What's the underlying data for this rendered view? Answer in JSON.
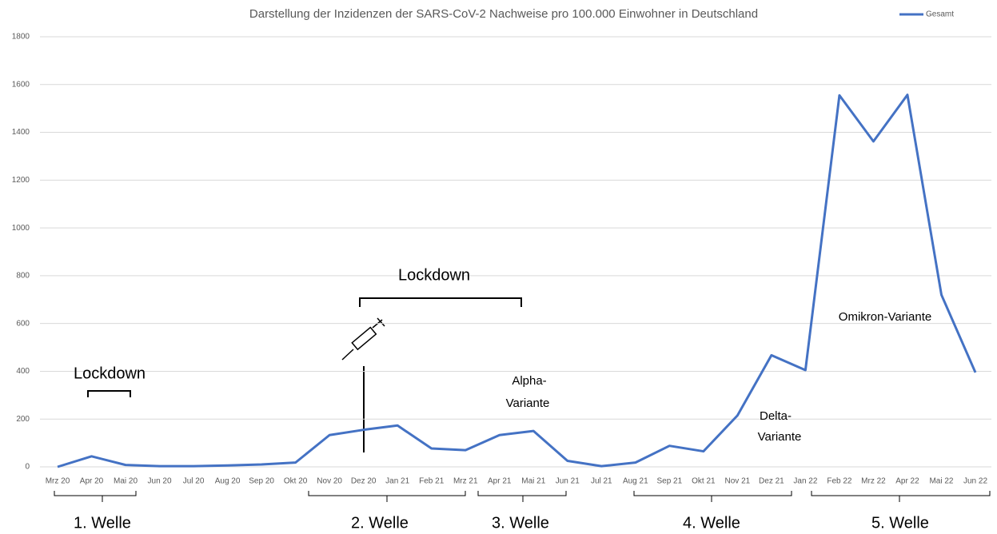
{
  "chart_data": {
    "type": "line",
    "title": "Darstellung der Inzidenzen der SARS-CoV-2 Nachweise pro 100.000 Einwohner in Deutschland",
    "categories": [
      "Mrz 20",
      "Apr 20",
      "Mai 20",
      "Jun 20",
      "Jul 20",
      "Aug 20",
      "Sep 20",
      "Okt 20",
      "Nov 20",
      "Dez 20",
      "Jan 21",
      "Feb 21",
      "Mrz 21",
      "Apr 21",
      "Mai 21",
      "Jun 21",
      "Jul 21",
      "Aug 21",
      "Sep 21",
      "Okt 21",
      "Nov 21",
      "Dez 21",
      "Jan 22",
      "Feb 22",
      "Mrz 22",
      "Apr 22",
      "Mai 22",
      "Jun 22"
    ],
    "series": [
      {
        "name": "Gesamt",
        "color": "#4472c4",
        "values": [
          0,
          44,
          8,
          3,
          3,
          6,
          10,
          18,
          133,
          155,
          173,
          77,
          70,
          133,
          150,
          25,
          3,
          18,
          88,
          65,
          215,
          467,
          405,
          1555,
          1362,
          1557,
          720,
          395
        ]
      }
    ],
    "ylim": [
      0,
      1800
    ],
    "yticks": [
      0,
      200,
      400,
      600,
      800,
      1000,
      1200,
      1400,
      1600,
      1800
    ],
    "grid": true,
    "legend": "top-right",
    "annotations": [
      "Lockdown",
      "Lockdown",
      "Alpha-",
      "Variante",
      "Delta-",
      "Variante",
      "Omikron-Variante"
    ],
    "waves": [
      "1. Welle",
      "2. Welle",
      "3. Welle",
      "4. Welle",
      "5. Welle"
    ]
  }
}
